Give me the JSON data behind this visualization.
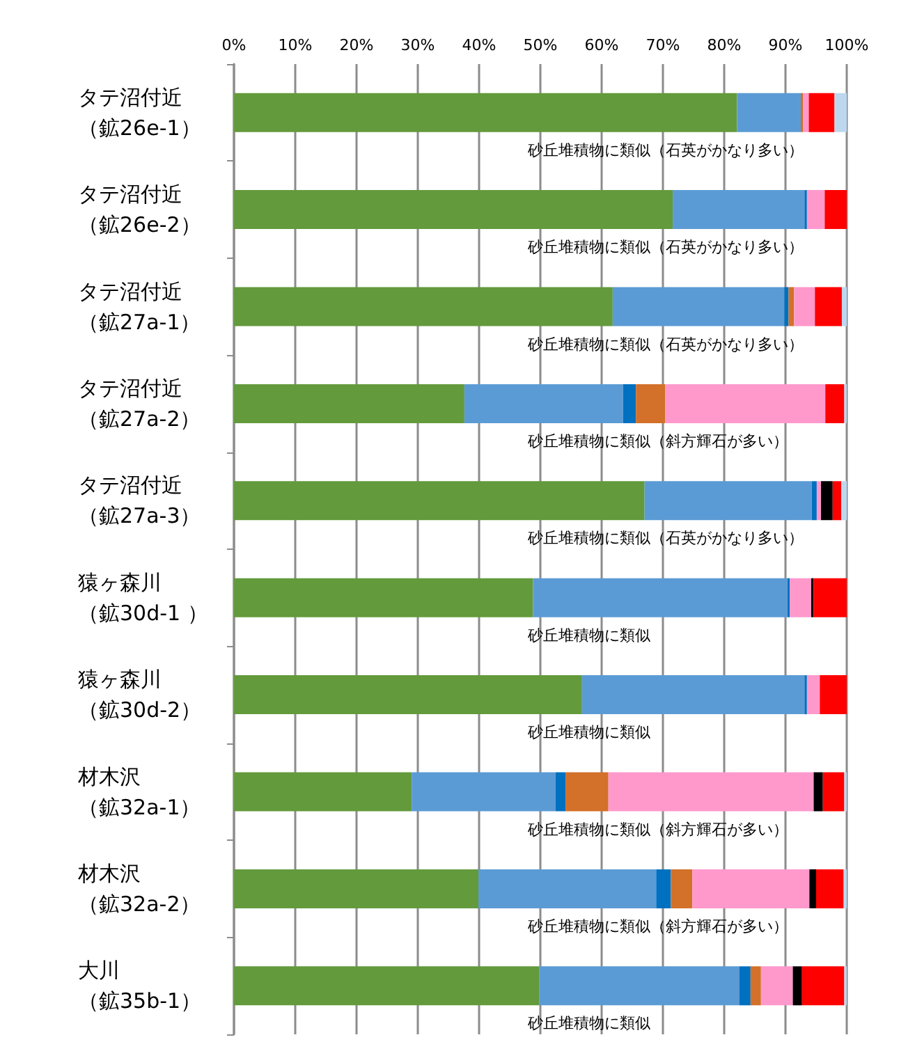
{
  "chart_data": {
    "type": "bar",
    "orientation": "horizontal",
    "stacked": true,
    "categories": [
      "タテ沼付近（鉱26e-1）",
      "タテ沼付近（鉱26e-2）",
      "タテ沼付近（鉱27a-1）",
      "タテ沼付近（鉱27a-2）",
      "タテ沼付近（鉱27a-3）",
      "猿ヶ森川（鉱30d-1 ）",
      "猿ヶ森川（鉱30d-2）",
      "材木沢（鉱32a-1）",
      "材木沢（鉱32a-2）",
      "大川（鉱35b-1）"
    ],
    "series": [
      {
        "color": "#639a3c",
        "values": [
          82.1,
          71.6,
          61.8,
          37.6,
          67.0,
          48.8,
          56.8,
          29.0,
          39.9,
          49.8
        ]
      },
      {
        "color": "#5b9bd5",
        "values": [
          10.4,
          21.5,
          28.0,
          25.9,
          27.3,
          41.5,
          36.3,
          23.5,
          29.0,
          32.7
        ]
      },
      {
        "color": "#0070c0",
        "values": [
          0,
          0.4,
          0.7,
          2.1,
          0.8,
          0.4,
          0.4,
          1.6,
          2.4,
          1.8
        ]
      },
      {
        "color": "#d37029",
        "values": [
          0.4,
          0,
          0.9,
          4.8,
          0,
          0,
          0,
          7.0,
          3.5,
          1.7
        ]
      },
      {
        "color": "#ff99cc",
        "values": [
          0.9,
          2.9,
          3.4,
          26.1,
          0.7,
          3.5,
          2.1,
          33.5,
          19.1,
          5.2
        ]
      },
      {
        "color": "#000000",
        "values": [
          0,
          0,
          0,
          0,
          1.9,
          0.4,
          0,
          1.5,
          1.1,
          1.5
        ]
      },
      {
        "color": "#ff0000",
        "values": [
          4.2,
          3.6,
          4.4,
          3.1,
          1.4,
          5.4,
          4.4,
          3.5,
          4.5,
          6.9
        ]
      },
      {
        "color": "#bdd7ee",
        "values": [
          2.0,
          0,
          0.8,
          0.4,
          0.9,
          0,
          0,
          0.4,
          0.5,
          0.4
        ]
      }
    ],
    "xlim": [
      0,
      100
    ],
    "xticks": [
      {
        "value": 0,
        "label": "0%"
      },
      {
        "value": 10,
        "label": "10%"
      },
      {
        "value": 20,
        "label": "20%"
      },
      {
        "value": 30,
        "label": "30%"
      },
      {
        "value": 40,
        "label": "40%"
      },
      {
        "value": 50,
        "label": "50%"
      },
      {
        "value": 60,
        "label": "60%"
      },
      {
        "value": 70,
        "label": "70%"
      },
      {
        "value": 80,
        "label": "80%"
      },
      {
        "value": 90,
        "label": "90%"
      },
      {
        "value": 100,
        "label": "100%"
      }
    ],
    "grid": "x",
    "annotations": [
      "砂丘堆積物に類似（石英がかなり多い）",
      "砂丘堆積物に類似（石英がかなり多い）",
      "砂丘堆積物に類似（石英がかなり多い）",
      "砂丘堆積物に類似（斜方輝石が多い）",
      "砂丘堆積物に類似（石英がかなり多い）",
      "砂丘堆積物に類似",
      "砂丘堆積物に類似",
      "砂丘堆積物に類似（斜方輝石が多い）",
      "砂丘堆積物に類似（斜方輝石が多い）",
      "砂丘堆積物に類似"
    ]
  }
}
